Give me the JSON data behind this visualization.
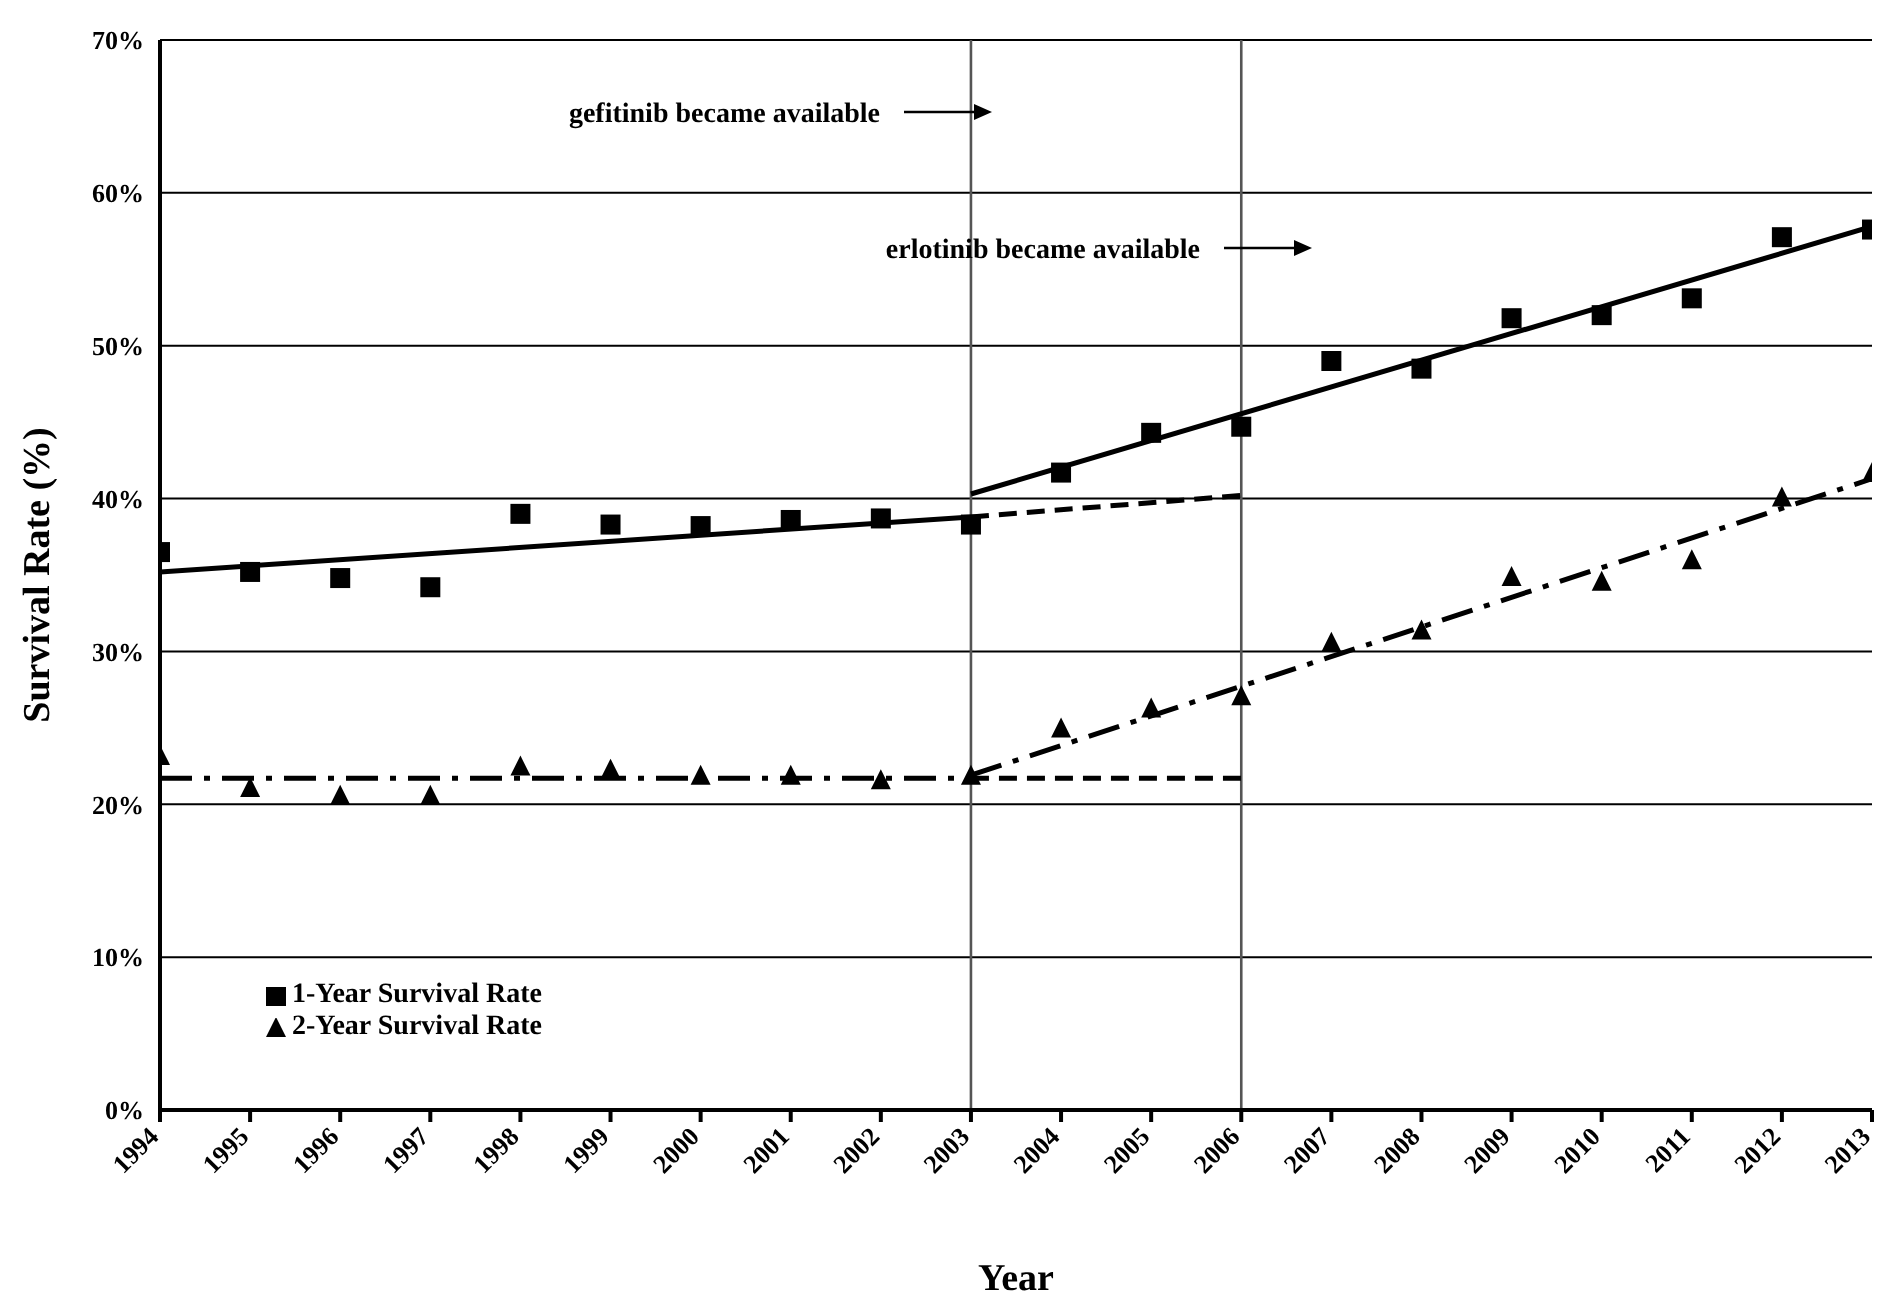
{
  "chart_data": {
    "type": "scatter",
    "xlabel": "Year",
    "ylabel": "Survival Rate (%)",
    "xlim": [
      1994,
      2013
    ],
    "xticks": [
      1994,
      1995,
      1996,
      1997,
      1998,
      1999,
      2000,
      2001,
      2002,
      2003,
      2004,
      2005,
      2006,
      2007,
      2008,
      2009,
      2010,
      2011,
      2012,
      2013
    ],
    "ylim": [
      0,
      70
    ],
    "yticks": [
      {
        "value": 0,
        "label": "0%"
      },
      {
        "value": 10,
        "label": "10%"
      },
      {
        "value": 20,
        "label": "20%"
      },
      {
        "value": 30,
        "label": "30%"
      },
      {
        "value": 40,
        "label": "40%"
      },
      {
        "value": 50,
        "label": "50%"
      },
      {
        "value": 60,
        "label": "60%"
      },
      {
        "value": 70,
        "label": "70%"
      }
    ],
    "grid": "y",
    "legend": "bottom left",
    "x": [
      1994,
      1995,
      1996,
      1997,
      1998,
      1999,
      2000,
      2001,
      2002,
      2003,
      2004,
      2005,
      2006,
      2007,
      2008,
      2009,
      2010,
      2011,
      2012,
      2013
    ],
    "series": [
      {
        "name": "1-Year Survival Rate",
        "marker": "square",
        "color": "#000000",
        "values": [
          36.5,
          35.2,
          34.8,
          34.2,
          39.0,
          38.3,
          38.2,
          38.6,
          38.7,
          38.3,
          41.7,
          44.3,
          44.7,
          49.0,
          48.5,
          51.8,
          52.0,
          53.1,
          57.1,
          57.6
        ]
      },
      {
        "name": "2-Year Survival Rate",
        "marker": "triangle",
        "color": "#000000",
        "values": [
          23.1,
          21.0,
          20.5,
          20.5,
          22.4,
          22.2,
          21.8,
          21.8,
          21.5,
          21.8,
          24.9,
          26.2,
          27.0,
          30.5,
          31.3,
          34.8,
          34.5,
          35.9,
          40.0,
          41.6
        ]
      },
      {
        "type": "line",
        "marker": "none",
        "line_style": "solid",
        "color": "#000000",
        "x": [
          1994,
          2003
        ],
        "values": [
          35.2,
          38.8
        ]
      },
      {
        "type": "line",
        "marker": "none",
        "line_style": "dashed",
        "color": "#000000",
        "x": [
          2003,
          2006
        ],
        "values": [
          38.8,
          40.2
        ]
      },
      {
        "type": "line",
        "marker": "none",
        "line_style": "solid",
        "color": "#000000",
        "x": [
          2003,
          2013
        ],
        "values": [
          40.3,
          57.8
        ]
      },
      {
        "type": "line",
        "marker": "none",
        "line_style": "dashdot",
        "color": "#000000",
        "x": [
          1994,
          2003
        ],
        "values": [
          21.7,
          21.7
        ]
      },
      {
        "type": "line",
        "marker": "none",
        "line_style": "dashed",
        "color": "#000000",
        "x": [
          2003,
          2006
        ],
        "values": [
          21.7,
          21.7
        ]
      },
      {
        "type": "line",
        "marker": "none",
        "line_style": "dashdot",
        "color": "#000000",
        "x": [
          2003,
          2013
        ],
        "values": [
          21.9,
          41.3
        ]
      }
    ],
    "ref_lines": [
      {
        "axis": "x",
        "value": 2003,
        "color": "#555555"
      },
      {
        "axis": "x",
        "value": 2006,
        "color": "#555555"
      }
    ],
    "annotations": [
      "gefitinib became available",
      "erlotinib became available"
    ]
  }
}
